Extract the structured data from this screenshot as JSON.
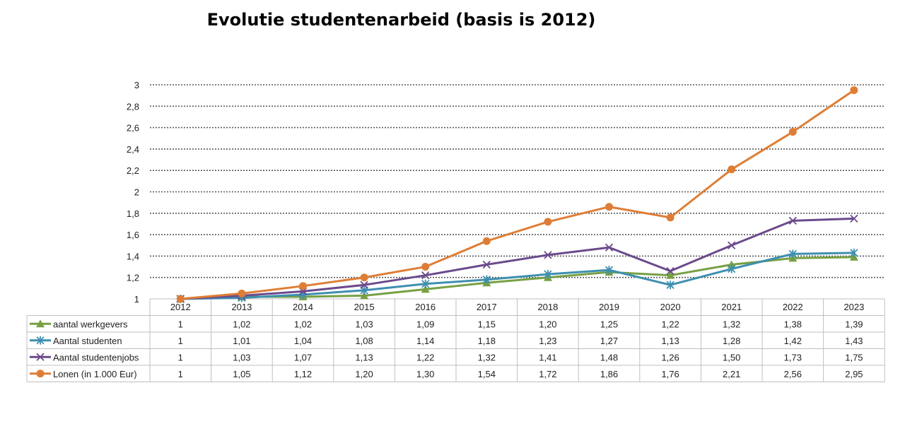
{
  "chart_data": {
    "type": "line",
    "title": "Evolutie studentenarbeid (basis is 2012)",
    "xlabel": "",
    "ylabel": "",
    "ylim": [
      1,
      3
    ],
    "yticks": [
      "1",
      "1,2",
      "1,4",
      "1,6",
      "1,8",
      "2",
      "2,2",
      "2,4",
      "2,6",
      "2,8",
      "3"
    ],
    "grid": true,
    "categories": [
      "2012",
      "2013",
      "2014",
      "2015",
      "2016",
      "2017",
      "2018",
      "2019",
      "2020",
      "2021",
      "2022",
      "2023"
    ],
    "series": [
      {
        "name": "aantal werkgevers",
        "color": "#77a043",
        "marker": "triangle",
        "values": [
          1,
          1.02,
          1.02,
          1.03,
          1.09,
          1.15,
          1.2,
          1.25,
          1.22,
          1.32,
          1.38,
          1.39
        ],
        "labels": [
          "1",
          "1,02",
          "1,02",
          "1,03",
          "1,09",
          "1,15",
          "1,20",
          "1,25",
          "1,22",
          "1,32",
          "1,38",
          "1,39"
        ]
      },
      {
        "name": "Aantal studenten",
        "color": "#3e8fb0",
        "marker": "asterisk",
        "values": [
          1,
          1.01,
          1.04,
          1.08,
          1.14,
          1.18,
          1.23,
          1.27,
          1.13,
          1.28,
          1.42,
          1.43
        ],
        "labels": [
          "1",
          "1,01",
          "1,04",
          "1,08",
          "1,14",
          "1,18",
          "1,23",
          "1,27",
          "1,13",
          "1,28",
          "1,42",
          "1,43"
        ]
      },
      {
        "name": "Aantal studentenjobs",
        "color": "#6b4a8c",
        "marker": "x",
        "values": [
          1,
          1.03,
          1.07,
          1.13,
          1.22,
          1.32,
          1.41,
          1.48,
          1.26,
          1.5,
          1.73,
          1.75
        ],
        "labels": [
          "1",
          "1,03",
          "1,07",
          "1,13",
          "1,22",
          "1,32",
          "1,41",
          "1,48",
          "1,26",
          "1,50",
          "1,73",
          "1,75"
        ]
      },
      {
        "name": "Lonen (in 1.000 Eur)",
        "color": "#de7e36",
        "marker": "circle",
        "values": [
          1,
          1.05,
          1.12,
          1.2,
          1.3,
          1.54,
          1.72,
          1.86,
          1.76,
          2.21,
          2.56,
          2.95
        ],
        "labels": [
          "1",
          "1,05",
          "1,12",
          "1,20",
          "1,30",
          "1,54",
          "1,72",
          "1,86",
          "1,76",
          "2,21",
          "2,56",
          "2,95"
        ]
      }
    ],
    "legend": "data-table-left"
  }
}
